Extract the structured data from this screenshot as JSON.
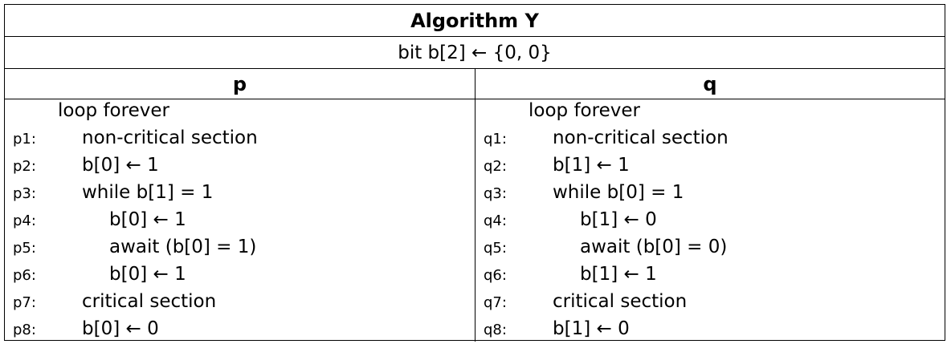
{
  "title": "Algorithm Y",
  "declaration": "bit b[2] ← {0, 0}",
  "processes": [
    {
      "name": "p",
      "lines": [
        {
          "label": "",
          "text": "loop forever",
          "indent": 0
        },
        {
          "label": "p1:",
          "text": "non-critical section",
          "indent": 1
        },
        {
          "label": "p2:",
          "text": "b[0] ← 1",
          "indent": 1
        },
        {
          "label": "p3:",
          "text": "while b[1] = 1",
          "indent": 1
        },
        {
          "label": "p4:",
          "text": "b[0] ← 1",
          "indent": 2
        },
        {
          "label": "p5:",
          "text": "await (b[0] = 1)",
          "indent": 2
        },
        {
          "label": "p6:",
          "text": "b[0] ← 1",
          "indent": 2
        },
        {
          "label": "p7:",
          "text": "critical section",
          "indent": 1
        },
        {
          "label": "p8:",
          "text": "b[0] ← 0",
          "indent": 1
        }
      ]
    },
    {
      "name": "q",
      "lines": [
        {
          "label": "",
          "text": "loop forever",
          "indent": 0
        },
        {
          "label": "q1:",
          "text": "non-critical section",
          "indent": 1
        },
        {
          "label": "q2:",
          "text": "b[1] ← 1",
          "indent": 1
        },
        {
          "label": "q3:",
          "text": "while b[0] = 1",
          "indent": 1
        },
        {
          "label": "q4:",
          "text": "b[1] ← 0",
          "indent": 2
        },
        {
          "label": "q5:",
          "text": "await (b[0] = 0)",
          "indent": 2
        },
        {
          "label": "q6:",
          "text": "b[1] ← 1",
          "indent": 2
        },
        {
          "label": "q7:",
          "text": "critical section",
          "indent": 1
        },
        {
          "label": "q8:",
          "text": "b[1] ← 0",
          "indent": 1
        }
      ]
    }
  ]
}
